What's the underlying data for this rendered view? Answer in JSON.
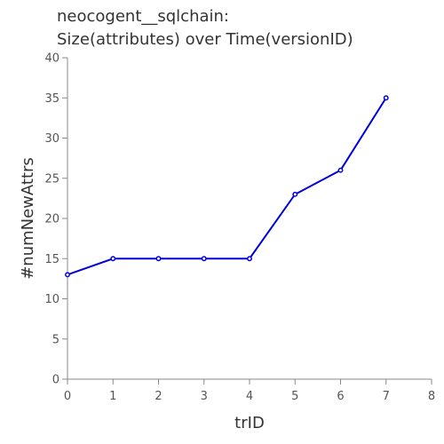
{
  "chart_data": {
    "type": "line",
    "title_lines": [
      "neocogent__sqlchain:",
      "Size(attributes) over Time(versionID)"
    ],
    "xlabel": "trID",
    "ylabel": "#numNewAttrs",
    "xlim": [
      0,
      8
    ],
    "ylim": [
      0,
      40
    ],
    "x_ticks": [
      "0",
      "1",
      "2",
      "3",
      "4",
      "5",
      "6",
      "7",
      "8"
    ],
    "y_ticks": [
      "0",
      "5",
      "10",
      "15",
      "20",
      "25",
      "30",
      "35",
      "40"
    ],
    "grid": false,
    "series": [
      {
        "color": "#0000dd",
        "x": [
          0,
          1,
          2,
          3,
          4,
          5,
          6,
          7
        ],
        "y": [
          13,
          15,
          15,
          15,
          15,
          23,
          26,
          35
        ]
      }
    ]
  }
}
